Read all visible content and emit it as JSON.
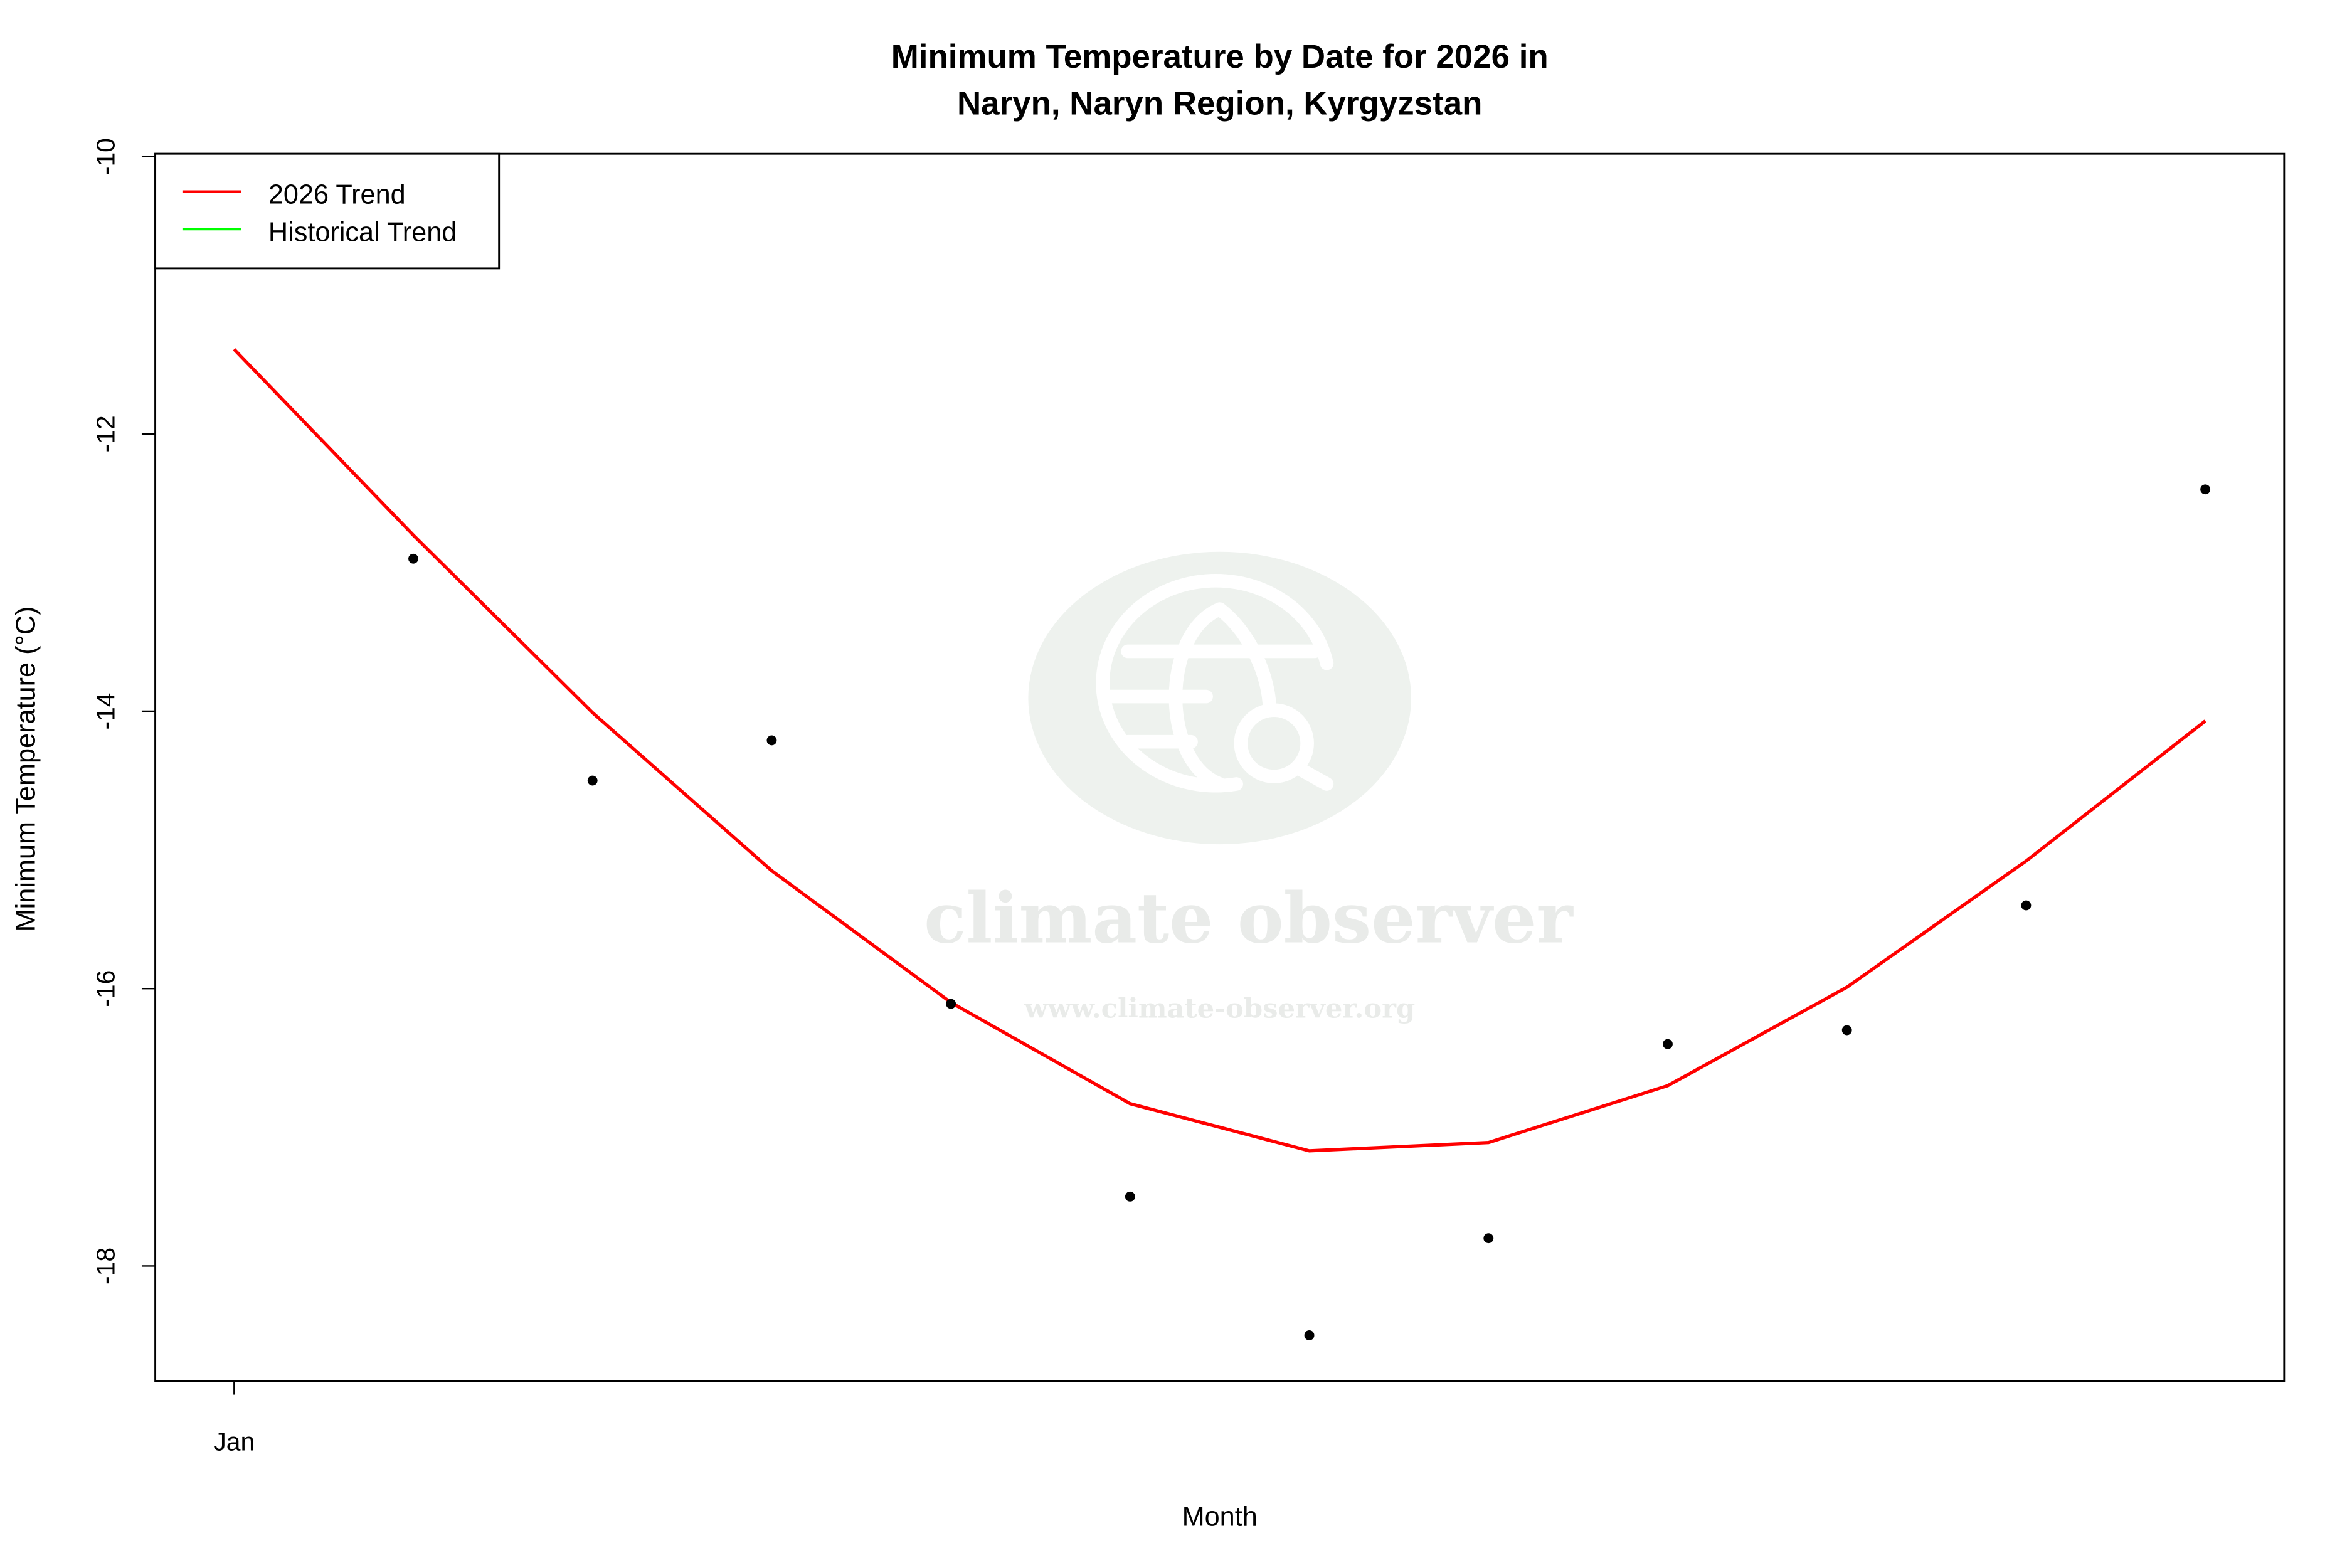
{
  "chart_data": {
    "type": "line",
    "title": "Minimum Temperature by Date for 2026 in",
    "subtitle": "Naryn, Naryn Region, Kyrgyzstan",
    "xlabel": "Month",
    "ylabel": "Minimum Temperature (°C)",
    "x_tick_labels": [
      {
        "x": 1,
        "label": "Jan"
      }
    ],
    "y_ticks": [
      -10,
      -12,
      -14,
      -16,
      -18
    ],
    "xlim": [
      0.56,
      12.44
    ],
    "ylim": [
      -18.83,
      -9.98
    ],
    "grid": false,
    "legend": {
      "placement": "top-left",
      "entries": [
        {
          "label": "2026 Trend",
          "color": "#ff0000"
        },
        {
          "label": "Historical Trend",
          "color": "#00ff00"
        }
      ]
    },
    "series": [
      {
        "name": "2026 Trend",
        "type": "line",
        "color": "#ff0000",
        "x": [
          1,
          2,
          3,
          4,
          5,
          6,
          7,
          8,
          9,
          10,
          11,
          12
        ],
        "y": [
          -11.39,
          -12.73,
          -14.01,
          -15.15,
          -16.1,
          -16.83,
          -17.17,
          -17.11,
          -16.7,
          -15.99,
          -15.08,
          -14.07
        ]
      },
      {
        "type": "scatter",
        "color": "#000000",
        "x": [
          2,
          3,
          4,
          5,
          6,
          7,
          8,
          9,
          10,
          11,
          12
        ],
        "y": [
          -12.9,
          -14.5,
          -14.21,
          -16.11,
          -17.5,
          -18.5,
          -17.8,
          -16.4,
          -16.3,
          -15.4,
          -12.4
        ]
      }
    ],
    "watermark": {
      "name": "climate observer",
      "url": "www.climate-observer.org",
      "icon": "globe-search-icon"
    }
  }
}
